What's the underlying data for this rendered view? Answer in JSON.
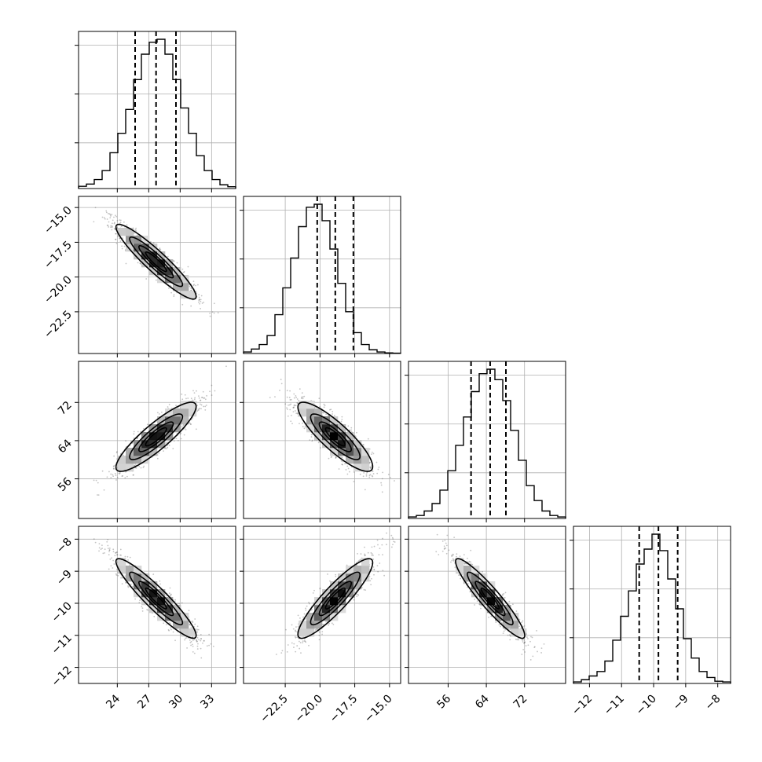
{
  "chart_data": {
    "type": "corner",
    "colors": {
      "line": "#000000",
      "grid": "#b0b0b0",
      "points": "#555555"
    },
    "grid": true,
    "parameters": [
      {
        "mean": 27.7,
        "sd": 1.85,
        "range": [
          20.3,
          35.3
        ],
        "quantiles": [
          25.7,
          27.7,
          29.6
        ],
        "ticks": [
          24,
          27,
          30,
          33
        ],
        "tick_labels": [
          "24",
          "27",
          "30",
          "33"
        ],
        "hist_counts": [
          0.015,
          0.03,
          0.06,
          0.12,
          0.24,
          0.37,
          0.53,
          0.73,
          0.9,
          0.98,
          1.0,
          0.9,
          0.73,
          0.54,
          0.37,
          0.22,
          0.12,
          0.06,
          0.025,
          0.012
        ]
      },
      {
        "mean": -18.9,
        "sd": 1.3,
        "range": [
          -25.5,
          -14.2
        ],
        "quantiles": [
          -20.2,
          -18.9,
          -17.6
        ],
        "ticks": [
          -22.5,
          -20.0,
          -17.5,
          -15.0
        ],
        "tick_labels": [
          "−22.5",
          "−20.0",
          "−17.5",
          "−15.0"
        ],
        "hist_counts": [
          0.01,
          0.03,
          0.06,
          0.12,
          0.26,
          0.44,
          0.64,
          0.85,
          0.98,
          1.0,
          0.89,
          0.7,
          0.47,
          0.28,
          0.14,
          0.06,
          0.025,
          0.01,
          0.004,
          0.002
        ]
      },
      {
        "mean": 64.8,
        "sd": 3.5,
        "range": [
          47.7,
          80.6
        ],
        "quantiles": [
          60.8,
          64.8,
          68.1
        ],
        "ticks": [
          56,
          64,
          72
        ],
        "tick_labels": [
          "56",
          "64",
          "72"
        ],
        "hist_counts": [
          0.01,
          0.02,
          0.05,
          0.1,
          0.19,
          0.32,
          0.49,
          0.68,
          0.85,
          0.97,
          1.0,
          0.93,
          0.79,
          0.59,
          0.39,
          0.22,
          0.12,
          0.05,
          0.02,
          0.01
        ]
      },
      {
        "mean": -9.85,
        "sd": 0.6,
        "range": [
          -12.5,
          -7.6
        ],
        "quantiles": [
          -10.45,
          -9.85,
          -9.25
        ],
        "ticks": [
          -12,
          -11,
          -10,
          -9,
          -8
        ],
        "tick_labels": [
          "−12",
          "−11",
          "−10",
          "−9",
          "−8"
        ],
        "hist_counts": [
          0.01,
          0.025,
          0.05,
          0.08,
          0.15,
          0.29,
          0.45,
          0.62,
          0.8,
          0.9,
          1.0,
          0.89,
          0.7,
          0.5,
          0.3,
          0.17,
          0.08,
          0.04,
          0.015,
          0.01
        ]
      }
    ],
    "correlations": [
      [
        1.0,
        -0.93,
        0.88,
        -0.93
      ],
      [
        -0.93,
        1.0,
        -0.86,
        0.9
      ],
      [
        0.88,
        -0.86,
        1.0,
        -0.93
      ],
      [
        -0.93,
        0.9,
        -0.93,
        1.0
      ]
    ],
    "contour_levels_sigma": [
      0.5,
      1.0,
      1.5,
      2.0
    ],
    "x_label_axis_ticks": "bottom row",
    "y_label_axis_ticks": "left column"
  }
}
